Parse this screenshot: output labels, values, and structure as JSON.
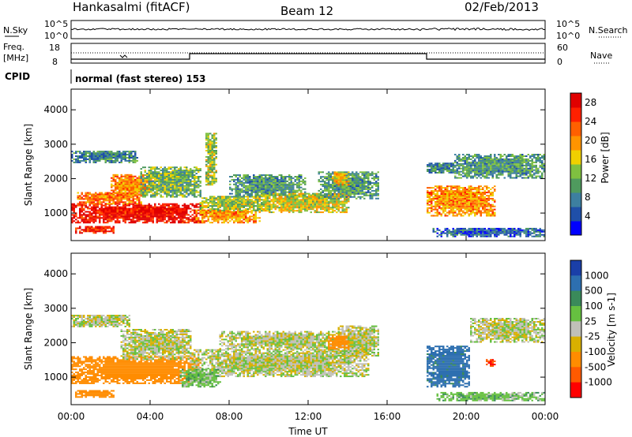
{
  "header": {
    "station": "Hankasalmi (fitACF)",
    "beam": "Beam 12",
    "date": "02/Feb/2013"
  },
  "strip_labels": {
    "nsky": "N.Sky",
    "nsearch": "N.Search",
    "nsky_ticks": [
      "10^5",
      "10^0"
    ],
    "nsearch_ticks": [
      "10^5",
      "10^0"
    ],
    "freq": "Freq.",
    "freq_unit": "[MHz]",
    "freq_ticks": [
      "18",
      "8"
    ],
    "nave": "Nave",
    "nave_ticks": [
      "60",
      "0"
    ],
    "cpid": "CPID",
    "mode": "normal (fast stereo) 153"
  },
  "colors": {
    "power_scale": [
      "#0000ff",
      "#1f4fa8",
      "#3d7fa0",
      "#4f9a5e",
      "#7fc040",
      "#f0d000",
      "#ff9400",
      "#ff6000",
      "#ff2000",
      "#e00000"
    ],
    "velocity_scale": [
      "#1a3fa8",
      "#2d6fb0",
      "#3a8a5a",
      "#66c040",
      "#c8c8c0",
      "#d8b000",
      "#ff8c00",
      "#ff5a00",
      "#ff0000"
    ],
    "ground_scatter": "#c0c0b8"
  },
  "chart_data": [
    {
      "type": "heatmap",
      "panel": "power",
      "xlabel": "Time UT",
      "ylabel": "Slant Range [km]",
      "x_ticks": [
        "00:00",
        "04:00",
        "08:00",
        "12:00",
        "16:00",
        "20:00",
        "00:00"
      ],
      "xlim": [
        0,
        24
      ],
      "ylim": [
        200,
        4600
      ],
      "y_ticks": [
        1000,
        2000,
        3000,
        4000
      ],
      "colorbar": {
        "label": "Power [dB]",
        "ticks": [
          4,
          8,
          12,
          16,
          20,
          24,
          28
        ],
        "range": [
          0,
          30
        ]
      },
      "regions": [
        {
          "t0": 0.0,
          "t1": 6.6,
          "r0": 700,
          "r1": 1250,
          "value": 28
        },
        {
          "t0": 0.3,
          "t1": 3.6,
          "r0": 1250,
          "r1": 1600,
          "value": 22
        },
        {
          "t0": 2.0,
          "t1": 4.2,
          "r0": 1500,
          "r1": 2100,
          "value": 20
        },
        {
          "t0": 0.2,
          "t1": 2.2,
          "r0": 400,
          "r1": 600,
          "value": 26
        },
        {
          "t0": 0.0,
          "t1": 3.4,
          "r0": 2450,
          "r1": 2800,
          "value": 8
        },
        {
          "t0": 3.5,
          "t1": 6.5,
          "r0": 1450,
          "r1": 2350,
          "value": 12
        },
        {
          "t0": 6.3,
          "t1": 9.5,
          "r0": 700,
          "r1": 1100,
          "value": 20
        },
        {
          "t0": 6.5,
          "t1": 10.0,
          "r0": 1050,
          "r1": 1500,
          "value": 14
        },
        {
          "t0": 8.0,
          "t1": 11.8,
          "r0": 1450,
          "r1": 2100,
          "value": 10
        },
        {
          "t0": 9.5,
          "t1": 14.0,
          "r0": 1000,
          "r1": 1550,
          "value": 16
        },
        {
          "t0": 12.5,
          "t1": 15.5,
          "r0": 1400,
          "r1": 2200,
          "value": 10
        },
        {
          "t0": 6.8,
          "t1": 7.3,
          "r0": 1800,
          "r1": 3300,
          "value": 14
        },
        {
          "t0": 13.2,
          "t1": 14.0,
          "r0": 1800,
          "r1": 2200,
          "value": 18
        },
        {
          "t0": 18.0,
          "t1": 19.4,
          "r0": 2150,
          "r1": 2450,
          "value": 8
        },
        {
          "t0": 19.4,
          "t1": 24.0,
          "r0": 2000,
          "r1": 2700,
          "value": 10
        },
        {
          "t0": 18.0,
          "t1": 21.5,
          "r0": 900,
          "r1": 1800,
          "value": 20
        },
        {
          "t0": 18.3,
          "t1": 24.0,
          "r0": 300,
          "r1": 550,
          "value": 6
        }
      ]
    },
    {
      "type": "heatmap",
      "panel": "velocity",
      "xlabel": "Time UT",
      "ylabel": "Slant Range [km]",
      "x_ticks": [
        "00:00",
        "04:00",
        "08:00",
        "12:00",
        "16:00",
        "20:00",
        "00:00"
      ],
      "xlim": [
        0,
        24
      ],
      "ylim": [
        200,
        4600
      ],
      "y_ticks": [
        1000,
        2000,
        3000,
        4000
      ],
      "colorbar": {
        "label": "Velocity [m s-1]",
        "ticks": [
          1000,
          500,
          100,
          25,
          -25,
          -100,
          -500,
          -1000
        ]
      },
      "regions": [
        {
          "t0": 0.0,
          "t1": 6.5,
          "r0": 800,
          "r1": 1600,
          "value": -200
        },
        {
          "t0": 0.2,
          "t1": 2.2,
          "r0": 400,
          "r1": 600,
          "value": -200
        },
        {
          "t0": 0.0,
          "t1": 3.0,
          "r0": 2450,
          "r1": 2800,
          "value": 0
        },
        {
          "t0": 2.5,
          "t1": 6.0,
          "r0": 1500,
          "r1": 2400,
          "value": 0
        },
        {
          "t0": 6.0,
          "t1": 15.0,
          "r0": 1000,
          "r1": 1800,
          "value": 0
        },
        {
          "t0": 7.5,
          "t1": 13.5,
          "r0": 1800,
          "r1": 2300,
          "value": 0
        },
        {
          "t0": 5.5,
          "t1": 7.5,
          "r0": 700,
          "r1": 1200,
          "value": 60
        },
        {
          "t0": 13.5,
          "t1": 15.5,
          "r0": 1600,
          "r1": 2500,
          "value": 0
        },
        {
          "t0": 18.0,
          "t1": 20.2,
          "r0": 700,
          "r1": 1900,
          "value": 300
        },
        {
          "t0": 20.2,
          "t1": 24.0,
          "r0": 2000,
          "r1": 2700,
          "value": 0
        },
        {
          "t0": 18.5,
          "t1": 24.0,
          "r0": 300,
          "r1": 550,
          "value": 60
        },
        {
          "t0": 13.0,
          "t1": 14.0,
          "r0": 1800,
          "r1": 2200,
          "value": -200
        },
        {
          "t0": 21.0,
          "t1": 21.5,
          "r0": 1300,
          "r1": 1500,
          "value": -600
        }
      ]
    }
  ]
}
